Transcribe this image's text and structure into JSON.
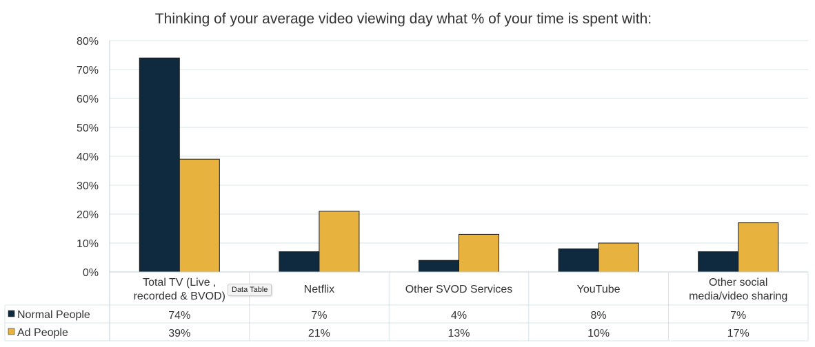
{
  "chart_data": {
    "type": "bar",
    "title": "Thinking of your average video viewing day what % of your time is spent with:",
    "categories": [
      [
        "Total TV (Live ,",
        "recorded & BVOD)"
      ],
      [
        "Netflix"
      ],
      [
        "Other SVOD Services"
      ],
      [
        "YouTube"
      ],
      [
        "Other social",
        "media/video sharing"
      ]
    ],
    "series": [
      {
        "name": "Normal People",
        "color": "#0f2a3f",
        "values": [
          74,
          7,
          4,
          8,
          7
        ],
        "labels": [
          "74%",
          "7%",
          "4%",
          "8%",
          "7%"
        ]
      },
      {
        "name": "Ad People",
        "color": "#e7b33e",
        "values": [
          39,
          21,
          13,
          10,
          17
        ],
        "labels": [
          "39%",
          "21%",
          "13%",
          "10%",
          "17%"
        ]
      }
    ],
    "ylim": [
      0,
      80
    ],
    "yticks": [
      0,
      10,
      20,
      30,
      40,
      50,
      60,
      70,
      80
    ],
    "ytick_labels": [
      "0%",
      "10%",
      "20%",
      "30%",
      "40%",
      "50%",
      "60%",
      "70%",
      "80%"
    ],
    "xlabel": "",
    "ylabel": "",
    "grid": true,
    "legend": "data-table-below"
  },
  "tooltip": {
    "text": "Data Table"
  },
  "colors": {
    "grid": "#d5e4ea",
    "axis": "#bfcfd6",
    "text": "#333333",
    "title": "#333333"
  }
}
